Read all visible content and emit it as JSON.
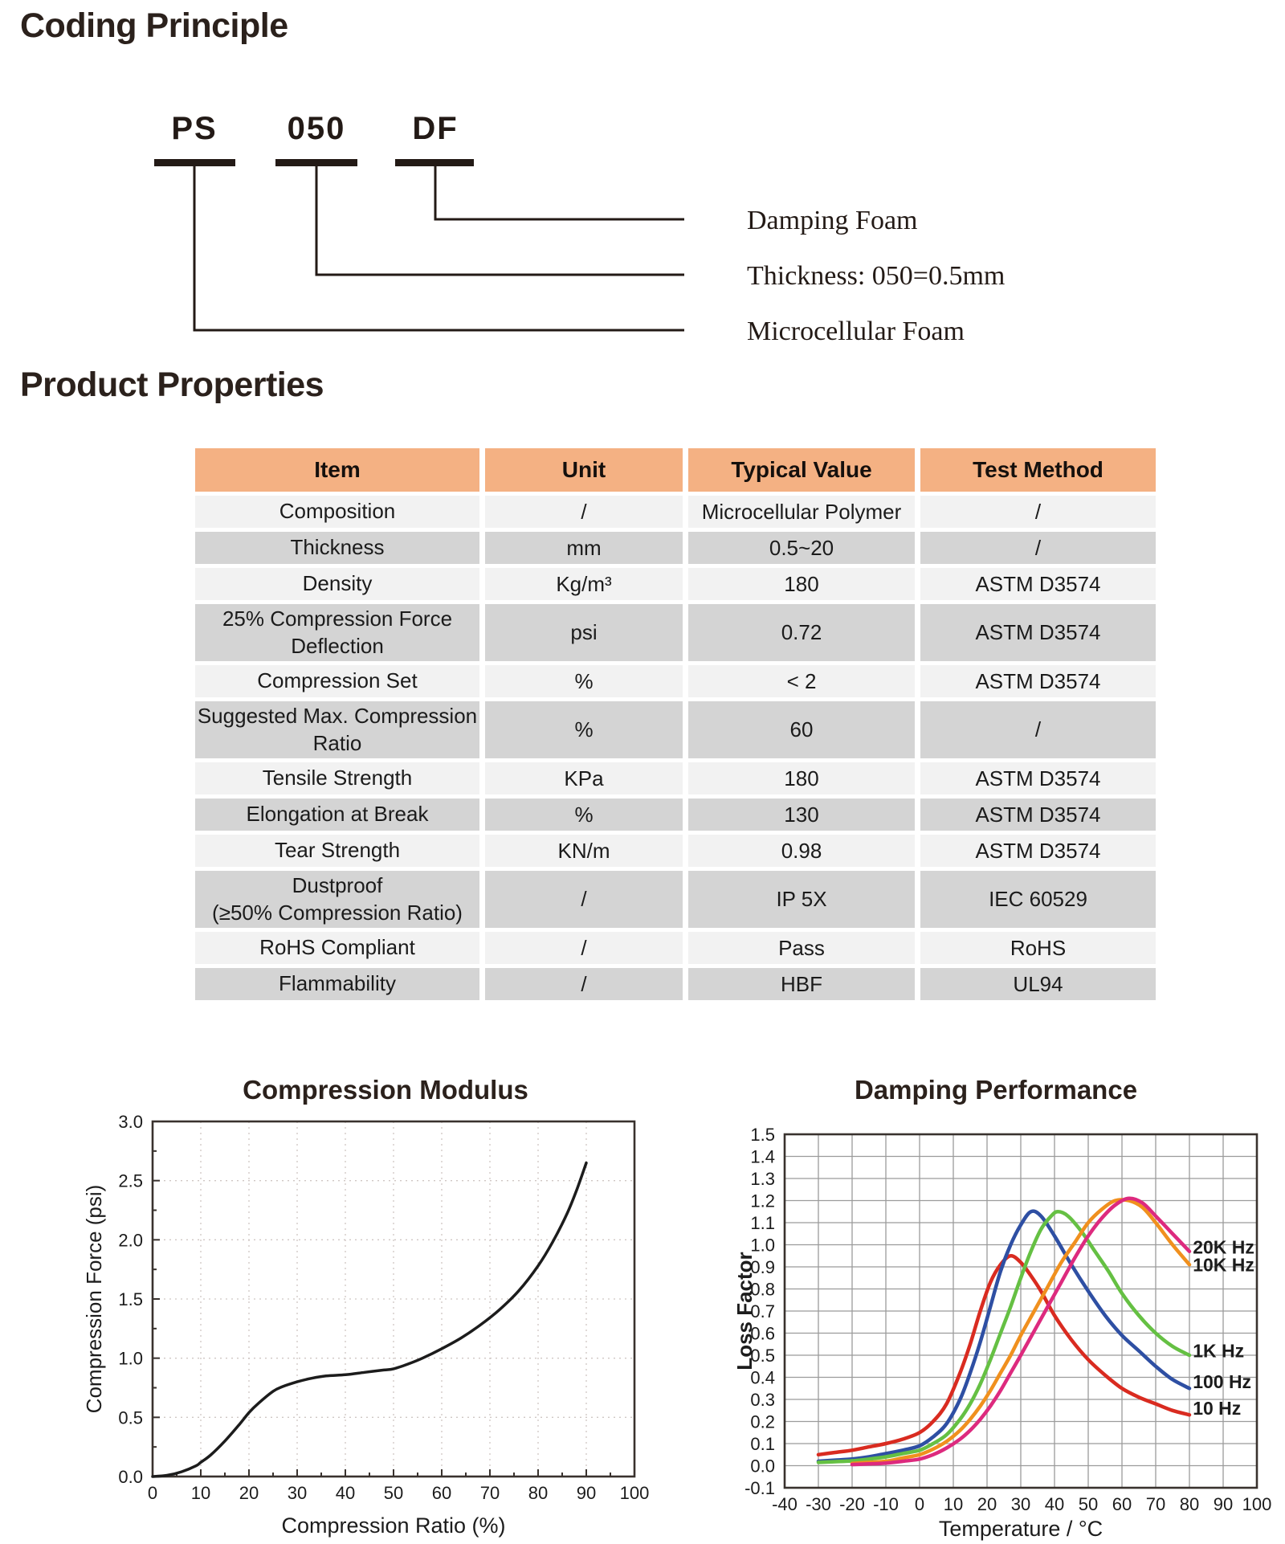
{
  "coding": {
    "title": "Coding Principle",
    "codes": [
      {
        "text": "PS",
        "meaning": "Microcellular Foam"
      },
      {
        "text": "050",
        "meaning": "Thickness: 050=0.5mm"
      },
      {
        "text": "DF",
        "meaning": "Damping Foam"
      }
    ],
    "labels_top_to_bottom": [
      "Damping Foam",
      "Thickness: 050=0.5mm",
      "Microcellular Foam"
    ]
  },
  "properties": {
    "title": "Product Properties",
    "colors": {
      "header_bg": "#f4b183",
      "row_light": "#f2f2f2",
      "row_dark": "#d4d4d4"
    },
    "table": {
      "headers": [
        "Item",
        "Unit",
        "Typical Value",
        "Test Method"
      ],
      "rows": [
        {
          "item": "Composition",
          "unit": "/",
          "value": "Microcellular Polymer",
          "method": "/"
        },
        {
          "item": "Thickness",
          "unit": "mm",
          "value": "0.5~20",
          "method": "/"
        },
        {
          "item": "Density",
          "unit": "Kg/m³",
          "value": "180",
          "method": "ASTM D3574"
        },
        {
          "item": "25% Compression Force\nDeflection",
          "unit": "psi",
          "value": "0.72",
          "method": "ASTM D3574"
        },
        {
          "item": "Compression Set",
          "unit": "%",
          "value": "< 2",
          "method": "ASTM D3574"
        },
        {
          "item": "Suggested Max. Compression\nRatio",
          "unit": "%",
          "value": "60",
          "method": "/"
        },
        {
          "item": "Tensile Strength",
          "unit": "KPa",
          "value": "180",
          "method": "ASTM D3574"
        },
        {
          "item": "Elongation at Break",
          "unit": "%",
          "value": "130",
          "method": "ASTM D3574"
        },
        {
          "item": "Tear Strength",
          "unit": "KN/m",
          "value": "0.98",
          "method": "ASTM D3574"
        },
        {
          "item": "Dustproof\n(≥50% Compression Ratio)",
          "unit": "/",
          "value": "IP 5X",
          "method": "IEC 60529"
        },
        {
          "item": "RoHS Compliant",
          "unit": "/",
          "value": "Pass",
          "method": "RoHS"
        },
        {
          "item": "Flammability",
          "unit": "/",
          "value": "HBF",
          "method": "UL94"
        }
      ]
    }
  },
  "chart_data": [
    {
      "type": "line",
      "title": "Compression Modulus",
      "xlabel": "Compression Ratio (%)",
      "ylabel": "Compression Force (psi)",
      "xlim": [
        0,
        100
      ],
      "ylim": [
        0.0,
        3.0
      ],
      "xtick_labels": [
        "0",
        "10",
        "20",
        "30",
        "40",
        "50",
        "60",
        "70",
        "80",
        "90",
        "100"
      ],
      "ytick_labels": [
        "0.0",
        "0.5",
        "1.0",
        "1.5",
        "2.0",
        "2.5",
        "3.0"
      ],
      "grid": "dotted",
      "legend_position": "none",
      "series": [
        {
          "name": "compression-curve",
          "color": "#1c1c1c",
          "width": 3.5,
          "points": [
            [
              0,
              0
            ],
            [
              3,
              0.01
            ],
            [
              6,
              0.04
            ],
            [
              9,
              0.09
            ],
            [
              10,
              0.12
            ],
            [
              12,
              0.18
            ],
            [
              15,
              0.3
            ],
            [
              18,
              0.44
            ],
            [
              20,
              0.54
            ],
            [
              22,
              0.62
            ],
            [
              25,
              0.72
            ],
            [
              27,
              0.76
            ],
            [
              30,
              0.8
            ],
            [
              33,
              0.83
            ],
            [
              36,
              0.85
            ],
            [
              40,
              0.86
            ],
            [
              44,
              0.88
            ],
            [
              48,
              0.9
            ],
            [
              50,
              0.91
            ],
            [
              53,
              0.95
            ],
            [
              56,
              1.0
            ],
            [
              60,
              1.08
            ],
            [
              64,
              1.17
            ],
            [
              68,
              1.28
            ],
            [
              72,
              1.41
            ],
            [
              76,
              1.57
            ],
            [
              80,
              1.78
            ],
            [
              83,
              1.98
            ],
            [
              86,
              2.22
            ],
            [
              88,
              2.42
            ],
            [
              90,
              2.65
            ]
          ]
        }
      ]
    },
    {
      "type": "line",
      "title": "Damping Performance",
      "xlabel": "Temperature / °C",
      "ylabel": "Loss Factor",
      "xlim": [
        -40,
        100
      ],
      "ylim": [
        -0.1,
        1.5
      ],
      "xtick_labels": [
        "-40",
        "-30",
        "-20",
        "-10",
        "0",
        "10",
        "20",
        "30",
        "40",
        "50",
        "60",
        "70",
        "80",
        "90",
        "100"
      ],
      "ytick_labels": [
        "-0.1",
        "0.0",
        "0.1",
        "0.2",
        "0.3",
        "0.4",
        "0.5",
        "0.6",
        "0.7",
        "0.8",
        "0.9",
        "1.0",
        "1.1",
        "1.2",
        "1.3",
        "1.4",
        "1.5"
      ],
      "grid": "solid",
      "legend_position": "right-inside",
      "series": [
        {
          "name": "10 Hz",
          "color": "#d92b20",
          "width": 4.5,
          "label_at_x": 81,
          "label_at_y": 0.26,
          "points": [
            [
              -30,
              0.05
            ],
            [
              -25,
              0.06
            ],
            [
              -20,
              0.07
            ],
            [
              -15,
              0.085
            ],
            [
              -10,
              0.1
            ],
            [
              -5,
              0.12
            ],
            [
              0,
              0.15
            ],
            [
              4,
              0.2
            ],
            [
              8,
              0.28
            ],
            [
              12,
              0.42
            ],
            [
              15,
              0.55
            ],
            [
              18,
              0.7
            ],
            [
              21,
              0.83
            ],
            [
              24,
              0.91
            ],
            [
              27,
              0.95
            ],
            [
              30,
              0.92
            ],
            [
              33,
              0.86
            ],
            [
              36,
              0.79
            ],
            [
              40,
              0.68
            ],
            [
              45,
              0.57
            ],
            [
              50,
              0.48
            ],
            [
              55,
              0.41
            ],
            [
              60,
              0.35
            ],
            [
              65,
              0.31
            ],
            [
              70,
              0.28
            ],
            [
              75,
              0.25
            ],
            [
              80,
              0.23
            ]
          ]
        },
        {
          "name": "100 Hz",
          "color": "#2e4fa3",
          "width": 4.5,
          "label_at_x": 81,
          "label_at_y": 0.38,
          "points": [
            [
              -30,
              0.02
            ],
            [
              -25,
              0.025
            ],
            [
              -20,
              0.03
            ],
            [
              -15,
              0.04
            ],
            [
              -10,
              0.055
            ],
            [
              -5,
              0.07
            ],
            [
              0,
              0.09
            ],
            [
              4,
              0.13
            ],
            [
              8,
              0.19
            ],
            [
              12,
              0.3
            ],
            [
              15,
              0.42
            ],
            [
              18,
              0.56
            ],
            [
              21,
              0.72
            ],
            [
              24,
              0.88
            ],
            [
              27,
              1.0
            ],
            [
              30,
              1.09
            ],
            [
              33,
              1.15
            ],
            [
              36,
              1.13
            ],
            [
              40,
              1.04
            ],
            [
              45,
              0.91
            ],
            [
              50,
              0.79
            ],
            [
              55,
              0.68
            ],
            [
              60,
              0.59
            ],
            [
              65,
              0.52
            ],
            [
              70,
              0.45
            ],
            [
              75,
              0.39
            ],
            [
              80,
              0.35
            ]
          ]
        },
        {
          "name": "1K Hz",
          "color": "#65c043",
          "width": 4.5,
          "label_at_x": 81,
          "label_at_y": 0.52,
          "points": [
            [
              -30,
              0.015
            ],
            [
              -25,
              0.018
            ],
            [
              -20,
              0.022
            ],
            [
              -15,
              0.03
            ],
            [
              -10,
              0.04
            ],
            [
              -5,
              0.055
            ],
            [
              0,
              0.07
            ],
            [
              4,
              0.1
            ],
            [
              8,
              0.14
            ],
            [
              12,
              0.21
            ],
            [
              15,
              0.28
            ],
            [
              18,
              0.37
            ],
            [
              21,
              0.48
            ],
            [
              24,
              0.6
            ],
            [
              27,
              0.72
            ],
            [
              30,
              0.85
            ],
            [
              33,
              0.97
            ],
            [
              36,
              1.07
            ],
            [
              39,
              1.13
            ],
            [
              41,
              1.15
            ],
            [
              44,
              1.13
            ],
            [
              48,
              1.06
            ],
            [
              52,
              0.97
            ],
            [
              56,
              0.88
            ],
            [
              60,
              0.78
            ],
            [
              65,
              0.68
            ],
            [
              70,
              0.6
            ],
            [
              75,
              0.54
            ],
            [
              80,
              0.5
            ]
          ]
        },
        {
          "name": "10K Hz",
          "color": "#f0901e",
          "width": 4.5,
          "label_at_x": 81,
          "label_at_y": 0.91,
          "points": [
            [
              -20,
              0.01
            ],
            [
              -15,
              0.015
            ],
            [
              -10,
              0.02
            ],
            [
              -5,
              0.035
            ],
            [
              0,
              0.05
            ],
            [
              4,
              0.075
            ],
            [
              8,
              0.11
            ],
            [
              12,
              0.16
            ],
            [
              15,
              0.21
            ],
            [
              18,
              0.27
            ],
            [
              21,
              0.34
            ],
            [
              24,
              0.42
            ],
            [
              27,
              0.5
            ],
            [
              30,
              0.59
            ],
            [
              34,
              0.7
            ],
            [
              38,
              0.81
            ],
            [
              42,
              0.92
            ],
            [
              46,
              1.01
            ],
            [
              50,
              1.1
            ],
            [
              54,
              1.16
            ],
            [
              58,
              1.2
            ],
            [
              62,
              1.2
            ],
            [
              66,
              1.17
            ],
            [
              70,
              1.1
            ],
            [
              75,
              1.0
            ],
            [
              80,
              0.91
            ]
          ]
        },
        {
          "name": "20K Hz",
          "color": "#dd2a7e",
          "width": 4.5,
          "label_at_x": 81,
          "label_at_y": 0.99,
          "points": [
            [
              -20,
              0.005
            ],
            [
              -15,
              0.008
            ],
            [
              -10,
              0.012
            ],
            [
              -5,
              0.02
            ],
            [
              0,
              0.03
            ],
            [
              4,
              0.05
            ],
            [
              8,
              0.08
            ],
            [
              12,
              0.12
            ],
            [
              15,
              0.16
            ],
            [
              18,
              0.21
            ],
            [
              21,
              0.27
            ],
            [
              24,
              0.34
            ],
            [
              27,
              0.42
            ],
            [
              30,
              0.5
            ],
            [
              34,
              0.61
            ],
            [
              38,
              0.72
            ],
            [
              42,
              0.83
            ],
            [
              46,
              0.94
            ],
            [
              50,
              1.04
            ],
            [
              54,
              1.12
            ],
            [
              58,
              1.18
            ],
            [
              62,
              1.21
            ],
            [
              66,
              1.19
            ],
            [
              70,
              1.13
            ],
            [
              75,
              1.05
            ],
            [
              80,
              0.97
            ]
          ]
        }
      ]
    }
  ]
}
